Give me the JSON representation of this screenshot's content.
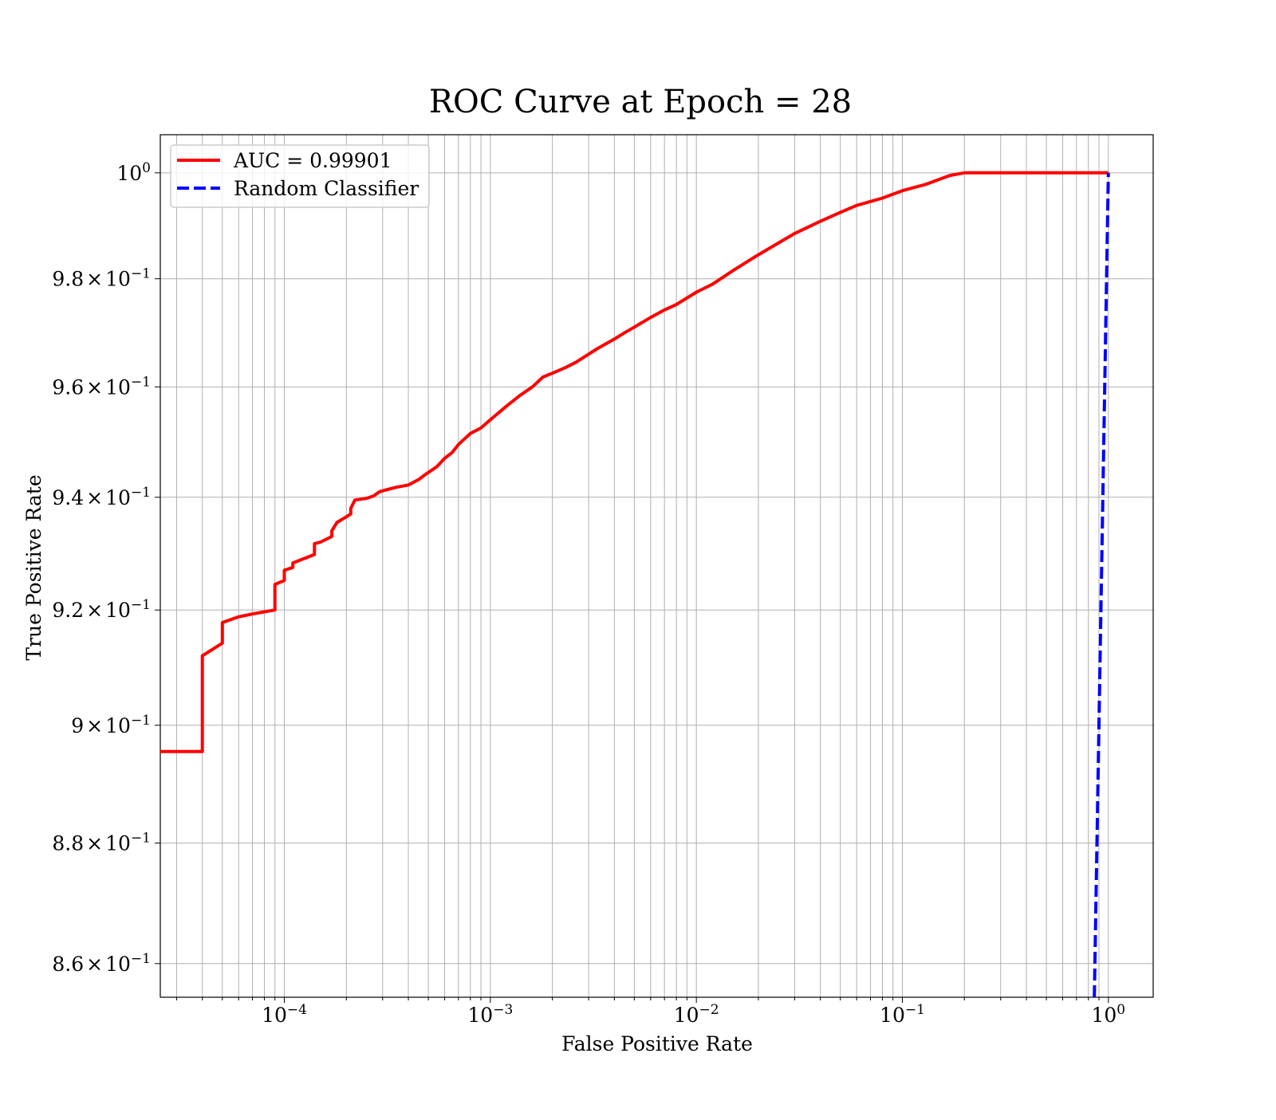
{
  "chart_data": {
    "type": "line",
    "title": "ROC Curve at Epoch = 28",
    "xlabel": "False Positive Rate",
    "ylabel": "True Positive Rate",
    "xscale": "log",
    "yscale": "log",
    "xlim": [
      2.5e-05,
      1.65
    ],
    "ylim": [
      0.8545,
      1.0073
    ],
    "grid": "both-major-and-minor",
    "legend_position": "upper-left",
    "xticks": [
      {
        "value": 0.0001,
        "base": "10",
        "exp": "−4"
      },
      {
        "value": 0.001,
        "base": "10",
        "exp": "−3"
      },
      {
        "value": 0.01,
        "base": "10",
        "exp": "−2"
      },
      {
        "value": 0.1,
        "base": "10",
        "exp": "−1"
      },
      {
        "value": 1,
        "base": "10",
        "exp": "0"
      }
    ],
    "yticks": [
      {
        "value": 0.86,
        "mant": "8.6",
        "base": "10",
        "exp": "−1"
      },
      {
        "value": 0.88,
        "mant": "8.8",
        "base": "10",
        "exp": "−1"
      },
      {
        "value": 0.9,
        "mant": "9",
        "base": "10",
        "exp": "−1"
      },
      {
        "value": 0.92,
        "mant": "9.2",
        "base": "10",
        "exp": "−1"
      },
      {
        "value": 0.94,
        "mant": "9.4",
        "base": "10",
        "exp": "−1"
      },
      {
        "value": 0.96,
        "mant": "9.6",
        "base": "10",
        "exp": "−1"
      },
      {
        "value": 0.98,
        "mant": "9.8",
        "base": "10",
        "exp": "−1"
      },
      {
        "value": 1.0,
        "mant": "",
        "base": "10",
        "exp": "0"
      }
    ],
    "series": [
      {
        "name": "AUC = 0.99901",
        "color": "#ff0000",
        "style": "solid",
        "x": [
          2.5e-05,
          4e-05,
          4e-05,
          5e-05,
          5e-05,
          6e-05,
          7e-05,
          9e-05,
          9e-05,
          0.0001,
          0.0001,
          0.00011,
          0.00011,
          0.00014,
          0.00014,
          0.00015,
          0.00017,
          0.00017,
          0.00018,
          0.0002,
          0.00021,
          0.00021,
          0.00022,
          0.00025,
          0.00027,
          0.00029,
          0.00031,
          0.00035,
          0.0004,
          0.00045,
          0.00048,
          0.00055,
          0.0006,
          0.00065,
          0.0007,
          0.0008,
          0.0009,
          0.001,
          0.0012,
          0.0014,
          0.0016,
          0.0018,
          0.002,
          0.0023,
          0.0026,
          0.003,
          0.0033,
          0.004,
          0.0045,
          0.005,
          0.006,
          0.007,
          0.008,
          0.01,
          0.012,
          0.015,
          0.02,
          0.025,
          0.03,
          0.04,
          0.05,
          0.06,
          0.08,
          0.1,
          0.13,
          0.17,
          0.2,
          0.5,
          1.0
        ],
        "y": [
          0.8955,
          0.8955,
          0.912,
          0.9142,
          0.9178,
          0.9188,
          0.9193,
          0.92,
          0.9245,
          0.9252,
          0.927,
          0.9275,
          0.9283,
          0.9298,
          0.9317,
          0.932,
          0.933,
          0.934,
          0.9355,
          0.9365,
          0.937,
          0.938,
          0.9395,
          0.9398,
          0.9402,
          0.941,
          0.9413,
          0.9418,
          0.9422,
          0.9432,
          0.944,
          0.9455,
          0.947,
          0.948,
          0.9495,
          0.9515,
          0.9525,
          0.954,
          0.9565,
          0.9585,
          0.96,
          0.9618,
          0.9625,
          0.9635,
          0.9645,
          0.966,
          0.967,
          0.9688,
          0.97,
          0.971,
          0.9728,
          0.9742,
          0.9752,
          0.9775,
          0.979,
          0.9815,
          0.9845,
          0.9867,
          0.9885,
          0.9908,
          0.9925,
          0.9938,
          0.9952,
          0.9966,
          0.9978,
          0.9995,
          1.0,
          1.0,
          1.0
        ]
      },
      {
        "name": "Random Classifier",
        "color": "#0000ff",
        "style": "dashed",
        "x": [
          0.8545,
          1.0
        ],
        "y": [
          0.8545,
          1.0
        ]
      }
    ]
  }
}
